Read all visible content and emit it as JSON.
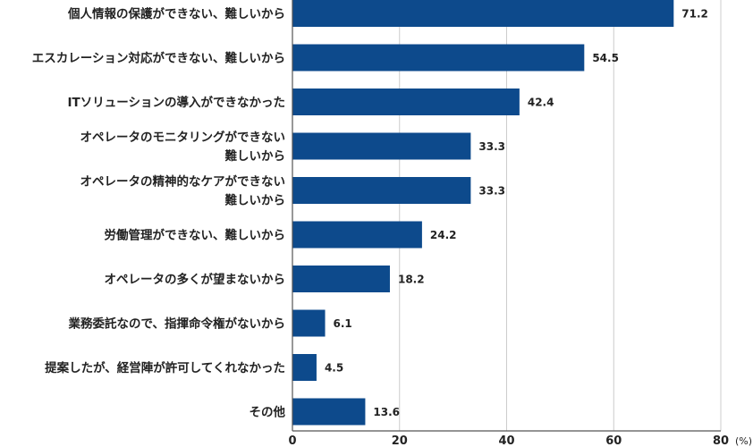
{
  "chart_data": {
    "type": "bar",
    "orientation": "horizontal",
    "categories": [
      [
        "個人情報の保護ができない、難しいから"
      ],
      [
        "エスカレーション対応ができない、難しいから"
      ],
      [
        "ITソリューションの導入ができなかった"
      ],
      [
        "オペレータのモニタリングができない",
        "難しいから"
      ],
      [
        "オペレータの精神的なケアができない",
        "難しいから"
      ],
      [
        "労働管理ができない、難しいから"
      ],
      [
        "オペレータの多くが望まないから"
      ],
      [
        "業務委託なので、指揮命令権がないから"
      ],
      [
        "提案したが、経営陣が許可してくれなかった"
      ],
      [
        "その他"
      ]
    ],
    "values": [
      71.2,
      54.5,
      42.4,
      33.3,
      33.3,
      24.2,
      18.2,
      6.1,
      4.5,
      13.6
    ],
    "value_labels": [
      "71.2",
      "54.5",
      "42.4",
      "33.3",
      "33.3",
      "24.2",
      "18.2",
      "6.1",
      "4.5",
      "13.6"
    ],
    "xlim": [
      0,
      80
    ],
    "x_ticks": [
      0,
      20,
      40,
      60,
      80
    ],
    "x_tick_labels": [
      "0",
      "20",
      "40",
      "60",
      "80"
    ],
    "unit": "(%)",
    "grid": true,
    "bar_color": "#0d4a8c",
    "grid_color": "#cccccc",
    "axis_color": "#555555"
  }
}
